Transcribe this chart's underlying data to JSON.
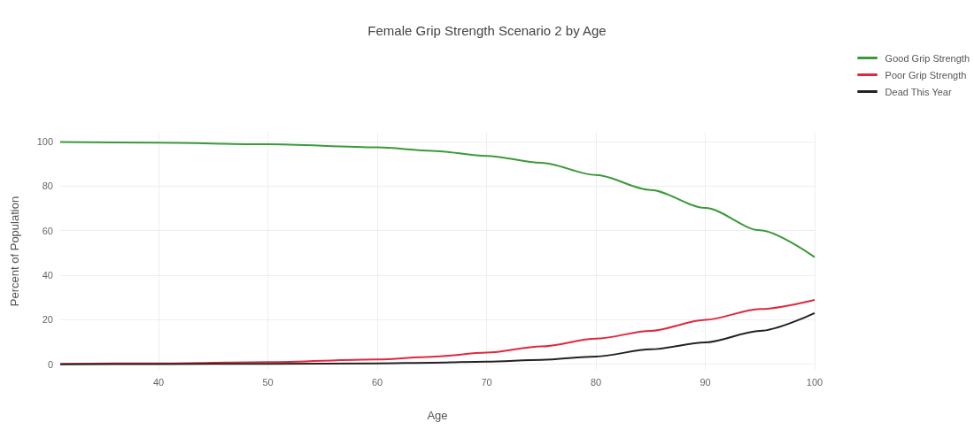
{
  "chart_data": {
    "type": "line",
    "title": "Female Grip Strength Scenario 2 by Age",
    "xlabel": "Age",
    "ylabel": "Percent of Population",
    "x": [
      31,
      40,
      50,
      60,
      65,
      70,
      75,
      80,
      85,
      90,
      95,
      100
    ],
    "series": [
      {
        "name": "Good Grip Strength",
        "color": "#3a9a3a",
        "values": [
          99.8,
          99.5,
          98.8,
          97.4,
          95.9,
          93.6,
          90.5,
          85,
          78.3,
          70.2,
          60.2,
          48.1
        ]
      },
      {
        "name": "Poor Grip Strength",
        "color": "#e0283c",
        "values": [
          0.2,
          0.4,
          1,
          2.2,
          3.4,
          5.2,
          8,
          11.5,
          15,
          20,
          24.8,
          28.9
        ]
      },
      {
        "name": "Dead This Year",
        "color": "#222222",
        "values": [
          0,
          0.1,
          0.2,
          0.4,
          0.7,
          1.2,
          2,
          3.5,
          6.7,
          9.8,
          15,
          23
        ]
      }
    ],
    "xlim": [
      31,
      100
    ],
    "xticks": [
      40,
      50,
      60,
      70,
      80,
      90,
      100
    ],
    "ylim": [
      -2.5,
      104
    ],
    "yticks": [
      0,
      20,
      40,
      60,
      80,
      100
    ],
    "grid": true,
    "legend": "top right",
    "marker": "none",
    "line_style": "solid"
  }
}
